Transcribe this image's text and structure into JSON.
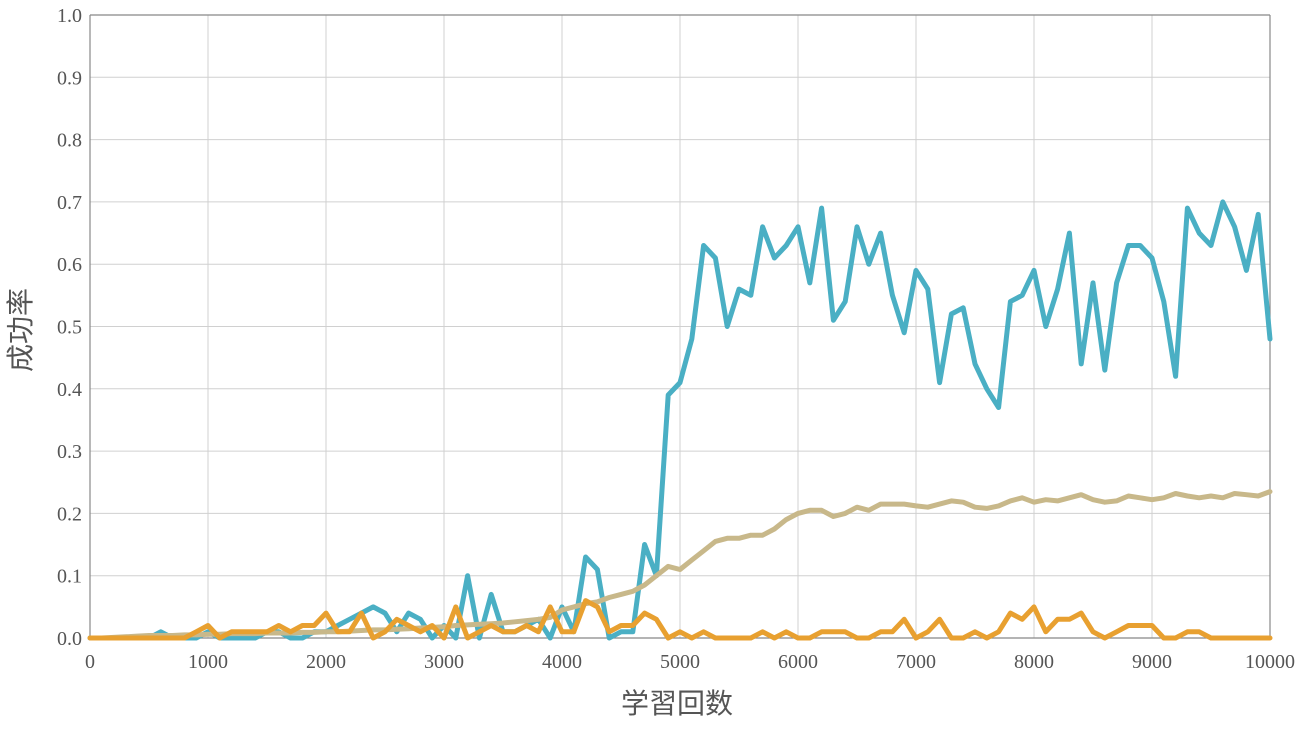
{
  "chart_data": {
    "type": "line",
    "title": "",
    "xlabel": "学習回数",
    "ylabel": "成功率",
    "xlim": [
      0,
      10000
    ],
    "ylim": [
      0,
      1.0
    ],
    "xticks": [
      "0",
      "1000",
      "2000",
      "3000",
      "4000",
      "5000",
      "6000",
      "7000",
      "8000",
      "9000",
      "10000"
    ],
    "yticks": [
      "0.0",
      "0.1",
      "0.2",
      "0.3",
      "0.4",
      "0.5",
      "0.6",
      "0.7",
      "0.8",
      "0.9",
      "1.0"
    ],
    "grid": true,
    "legend": "none",
    "colors": [
      "#4aafc4",
      "#e8a030",
      "#c8b88a"
    ],
    "series": [
      {
        "x": [
          0,
          100,
          200,
          300,
          400,
          500,
          600,
          700,
          800,
          900,
          1000,
          1100,
          1200,
          1300,
          1400,
          1500,
          1600,
          1700,
          1800,
          1900,
          2000,
          2100,
          2200,
          2300,
          2400,
          2500,
          2600,
          2700,
          2800,
          2900,
          3000,
          3100,
          3200,
          3300,
          3400,
          3500,
          3600,
          3700,
          3800,
          3900,
          4000,
          4100,
          4200,
          4300,
          4400,
          4500,
          4600,
          4700,
          4800,
          4900,
          5000,
          5100,
          5200,
          5300,
          5400,
          5500,
          5600,
          5700,
          5800,
          5900,
          6000,
          6100,
          6200,
          6300,
          6400,
          6500,
          6600,
          6700,
          6800,
          6900,
          7000,
          7100,
          7200,
          7300,
          7400,
          7500,
          7600,
          7700,
          7800,
          7900,
          8000,
          8100,
          8200,
          8300,
          8400,
          8500,
          8600,
          8700,
          8800,
          8900,
          9000,
          9100,
          9200,
          9300,
          9400,
          9500,
          9600,
          9700,
          9800,
          9900,
          10000
        ],
        "values": [
          0,
          0,
          0,
          0,
          0,
          0,
          0.01,
          0,
          0,
          0,
          0.01,
          0,
          0,
          0,
          0,
          0.01,
          0.01,
          0,
          0,
          0.01,
          0.01,
          0.02,
          0.03,
          0.04,
          0.05,
          0.04,
          0.01,
          0.04,
          0.03,
          0,
          0.02,
          0,
          0.1,
          0,
          0.07,
          0.01,
          0.01,
          0.02,
          0.03,
          0,
          0.05,
          0.01,
          0.13,
          0.11,
          0,
          0.01,
          0.01,
          0.15,
          0.1,
          0.39,
          0.41,
          0.48,
          0.63,
          0.61,
          0.5,
          0.56,
          0.55,
          0.66,
          0.61,
          0.63,
          0.66,
          0.57,
          0.69,
          0.51,
          0.54,
          0.66,
          0.6,
          0.65,
          0.55,
          0.49,
          0.59,
          0.56,
          0.41,
          0.52,
          0.53,
          0.44,
          0.4,
          0.37,
          0.54,
          0.55,
          0.59,
          0.5,
          0.56,
          0.65,
          0.44,
          0.57,
          0.43,
          0.57,
          0.63,
          0.63,
          0.61,
          0.54,
          0.42,
          0.69,
          0.65,
          0.63,
          0.7,
          0.66,
          0.59,
          0.68,
          0.48
        ]
      },
      {
        "x": [
          0,
          100,
          200,
          300,
          400,
          500,
          600,
          700,
          800,
          900,
          1000,
          1100,
          1200,
          1300,
          1400,
          1500,
          1600,
          1700,
          1800,
          1900,
          2000,
          2100,
          2200,
          2300,
          2400,
          2500,
          2600,
          2700,
          2800,
          2900,
          3000,
          3100,
          3200,
          3300,
          3400,
          3500,
          3600,
          3700,
          3800,
          3900,
          4000,
          4100,
          4200,
          4300,
          4400,
          4500,
          4600,
          4700,
          4800,
          4900,
          5000,
          5100,
          5200,
          5300,
          5400,
          5500,
          5600,
          5700,
          5800,
          5900,
          6000,
          6100,
          6200,
          6300,
          6400,
          6500,
          6600,
          6700,
          6800,
          6900,
          7000,
          7100,
          7200,
          7300,
          7400,
          7500,
          7600,
          7700,
          7800,
          7900,
          8000,
          8100,
          8200,
          8300,
          8400,
          8500,
          8600,
          8700,
          8800,
          8900,
          9000,
          9100,
          9200,
          9300,
          9400,
          9500,
          9600,
          9700,
          9800,
          9900,
          10000
        ],
        "values": [
          0,
          0,
          0,
          0,
          0,
          0,
          0,
          0,
          0,
          0.01,
          0.02,
          0,
          0.01,
          0.01,
          0.01,
          0.01,
          0.02,
          0.01,
          0.02,
          0.02,
          0.04,
          0.01,
          0.01,
          0.04,
          0,
          0.01,
          0.03,
          0.02,
          0.01,
          0.02,
          0,
          0.05,
          0,
          0.01,
          0.02,
          0.01,
          0.01,
          0.02,
          0.01,
          0.05,
          0.01,
          0.01,
          0.06,
          0.05,
          0.01,
          0.02,
          0.02,
          0.04,
          0.03,
          0,
          0.01,
          0,
          0.01,
          0,
          0,
          0,
          0,
          0.01,
          0,
          0.01,
          0,
          0,
          0.01,
          0.01,
          0.01,
          0,
          0,
          0.01,
          0.01,
          0.03,
          0,
          0.01,
          0.03,
          0,
          0,
          0.01,
          0,
          0.01,
          0.04,
          0.03,
          0.05,
          0.01,
          0.03,
          0.03,
          0.04,
          0.01,
          0,
          0.01,
          0.02,
          0.02,
          0.02,
          0,
          0,
          0.01,
          0.01,
          0,
          0,
          0,
          0,
          0,
          0
        ]
      },
      {
        "x": [
          0,
          100,
          200,
          300,
          400,
          500,
          600,
          700,
          800,
          900,
          1000,
          1100,
          1200,
          1300,
          1400,
          1500,
          1600,
          1700,
          1800,
          1900,
          2000,
          2100,
          2200,
          2300,
          2400,
          2500,
          2600,
          2700,
          2800,
          2900,
          3000,
          3100,
          3200,
          3300,
          3400,
          3500,
          3600,
          3700,
          3800,
          3900,
          4000,
          4100,
          4200,
          4300,
          4400,
          4500,
          4600,
          4700,
          4800,
          4900,
          5000,
          5100,
          5200,
          5300,
          5400,
          5500,
          5600,
          5700,
          5800,
          5900,
          6000,
          6100,
          6200,
          6300,
          6400,
          6500,
          6600,
          6700,
          6800,
          6900,
          7000,
          7100,
          7200,
          7300,
          7400,
          7500,
          7600,
          7700,
          7800,
          7900,
          8000,
          8100,
          8200,
          8300,
          8400,
          8500,
          8600,
          8700,
          8800,
          8900,
          9000,
          9100,
          9200,
          9300,
          9400,
          9500,
          9600,
          9700,
          9800,
          9900,
          10000
        ],
        "values": [
          0,
          0,
          0.001,
          0.002,
          0.003,
          0.004,
          0.004,
          0.004,
          0.005,
          0.005,
          0.006,
          0.006,
          0.007,
          0.007,
          0.007,
          0.008,
          0.008,
          0.008,
          0.009,
          0.009,
          0.01,
          0.01,
          0.011,
          0.012,
          0.013,
          0.013,
          0.014,
          0.015,
          0.016,
          0.017,
          0.018,
          0.02,
          0.021,
          0.022,
          0.023,
          0.024,
          0.026,
          0.028,
          0.03,
          0.033,
          0.045,
          0.05,
          0.055,
          0.058,
          0.065,
          0.07,
          0.075,
          0.085,
          0.1,
          0.115,
          0.11,
          0.125,
          0.14,
          0.155,
          0.16,
          0.16,
          0.165,
          0.165,
          0.175,
          0.19,
          0.2,
          0.205,
          0.205,
          0.195,
          0.2,
          0.21,
          0.205,
          0.215,
          0.215,
          0.215,
          0.212,
          0.21,
          0.215,
          0.22,
          0.218,
          0.21,
          0.208,
          0.212,
          0.22,
          0.225,
          0.218,
          0.222,
          0.22,
          0.225,
          0.23,
          0.222,
          0.218,
          0.22,
          0.228,
          0.225,
          0.222,
          0.225,
          0.232,
          0.228,
          0.225,
          0.228,
          0.225,
          0.232,
          0.23,
          0.228,
          0.235
        ]
      }
    ]
  }
}
